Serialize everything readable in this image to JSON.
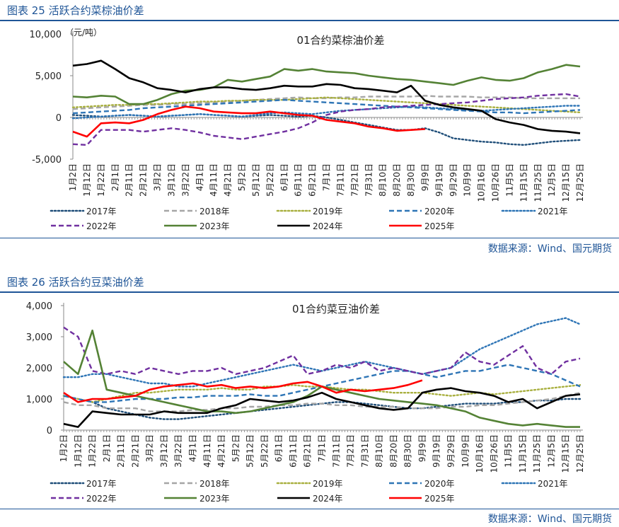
{
  "figures": [
    {
      "caption": "图表 25 活跃合约菜棕油价差",
      "source": "数据来源：Wind、国元期货",
      "chart_data": {
        "type": "line",
        "title": "01合约菜棕油价差",
        "ylabel": "（元/吨）",
        "ylim": [
          -5000,
          10000
        ],
        "yticks": [
          -5000,
          0,
          5000,
          10000
        ],
        "ytick_labels": [
          "-5,000",
          "0",
          "5,000",
          "10,000"
        ],
        "x_labels": [
          "1月2日",
          "1月12日",
          "1月22日",
          "2月1日",
          "2月11日",
          "2月21日",
          "3月2日",
          "3月12日",
          "3月22日",
          "4月1日",
          "4月11日",
          "4月21日",
          "5月2日",
          "5月12日",
          "5月22日",
          "6月1日",
          "6月11日",
          "6月21日",
          "7月1日",
          "7月11日",
          "7月21日",
          "7月31日",
          "8月10日",
          "8月20日",
          "8月30日",
          "9月9日",
          "9月19日",
          "9月29日",
          "10月9日",
          "10月16日",
          "10月26日",
          "11月5日",
          "11月15日",
          "11月25日",
          "12月5日",
          "12月15日",
          "12月25日"
        ],
        "series": [
          {
            "name": "2017年",
            "color": "#1f4e79",
            "dash": "dot",
            "values": [
              300,
              200,
              100,
              200,
              300,
              200,
              100,
              200,
              300,
              400,
              300,
              200,
              100,
              200,
              300,
              200,
              100,
              200,
              0,
              -300,
              -600,
              -900,
              -1200,
              -1500,
              -1500,
              -1300,
              -1800,
              -2500,
              -2700,
              -2900,
              -3000,
              -3200,
              -3300,
              -3100,
              -2900,
              -2800,
              -2700
            ]
          },
          {
            "name": "2018年",
            "color": "#a6a6a6",
            "dash": "dash",
            "values": [
              1000,
              1100,
              1200,
              1300,
              1400,
              1500,
              1500,
              1600,
              1600,
              1700,
              1800,
              1900,
              2000,
              2100,
              2200,
              2300,
              2400,
              2300,
              2300,
              2400,
              2400,
              2500,
              2500,
              2500,
              2500,
              2600,
              2500,
              2500,
              2500,
              2400,
              2400,
              2400,
              2300,
              2300,
              2300,
              2300,
              2300
            ]
          },
          {
            "name": "2019年",
            "color": "#a9b040",
            "dash": "dot",
            "values": [
              1200,
              1300,
              1400,
              1500,
              1500,
              1600,
              1600,
              1700,
              1800,
              1900,
              1900,
              2000,
              2000,
              2100,
              2100,
              2100,
              2200,
              2300,
              2400,
              2300,
              2200,
              2100,
              2000,
              1900,
              1800,
              1700,
              1600,
              1500,
              1400,
              1300,
              1200,
              1100,
              1000,
              900,
              800,
              700,
              600
            ]
          },
          {
            "name": "2020年",
            "color": "#2e75b6",
            "dash": "dash",
            "values": [
              500,
              600,
              700,
              800,
              900,
              1100,
              1200,
              1300,
              1400,
              1500,
              1600,
              1700,
              1800,
              1900,
              2000,
              2100,
              2000,
              1900,
              1800,
              1700,
              1600,
              1500,
              1400,
              1300,
              1200,
              1100,
              1000,
              900,
              800,
              700,
              600,
              600,
              500,
              600,
              700,
              800,
              900
            ]
          },
          {
            "name": "2021年",
            "color": "#2e75b6",
            "dash": "dot",
            "values": [
              -100,
              0,
              100,
              200,
              300,
              200,
              100,
              200,
              300,
              400,
              300,
              200,
              100,
              300,
              500,
              600,
              500,
              400,
              600,
              800,
              900,
              1000,
              1100,
              1200,
              1300,
              1200,
              1100,
              1000,
              900,
              800,
              900,
              1000,
              1100,
              1200,
              1300,
              1400,
              1400
            ]
          },
          {
            "name": "2022年",
            "color": "#7030a0",
            "dash": "dash",
            "values": [
              -3200,
              -3300,
              -1500,
              -1500,
              -1500,
              -1700,
              -1500,
              -1300,
              -1500,
              -1800,
              -2200,
              -2400,
              -2600,
              -2300,
              -2000,
              -1700,
              -1300,
              -600,
              300,
              700,
              900,
              1000,
              1200,
              1300,
              1400,
              1500,
              1600,
              1700,
              1800,
              2000,
              2200,
              2300,
              2400,
              2600,
              2700,
              2800,
              2500
            ]
          },
          {
            "name": "2023年",
            "color": "#548235",
            "dash": "solid",
            "values": [
              2500,
              2400,
              2600,
              2500,
              1600,
              1600,
              2100,
              2800,
              3200,
              3300,
              3600,
              4500,
              4300,
              4600,
              4900,
              5800,
              5600,
              5800,
              5500,
              5400,
              5300,
              5000,
              4800,
              4600,
              4500,
              4300,
              4100,
              3900,
              4400,
              4800,
              4500,
              4400,
              4700,
              5400,
              5800,
              6300,
              6100
            ]
          },
          {
            "name": "2024年",
            "color": "#000000",
            "dash": "solid",
            "values": [
              6200,
              6400,
              6800,
              5800,
              4700,
              4200,
              3500,
              3300,
              3000,
              3400,
              3600,
              3600,
              3400,
              3300,
              3500,
              3800,
              3700,
              3700,
              4000,
              3900,
              3500,
              3400,
              3200,
              3000,
              3800,
              2000,
              1500,
              1200,
              1000,
              800,
              -200,
              -600,
              -900,
              -1400,
              -1600,
              -1700,
              -1900
            ]
          },
          {
            "name": "2025年",
            "color": "#ff0000",
            "dash": "solid",
            "values": [
              -1700,
              -2300,
              -700,
              -600,
              -700,
              -300,
              400,
              900,
              1300,
              1100,
              700,
              600,
              500,
              500,
              700,
              500,
              300,
              200,
              -300,
              -500,
              -700,
              -1100,
              -1300,
              -1600,
              -1500,
              -1400
            ]
          }
        ]
      }
    },
    {
      "caption": "图表 26 活跃合约豆菜油价差",
      "source": "数据来源：Wind、国元期货",
      "chart_data": {
        "type": "line",
        "title": "01合约菜豆油价差",
        "ylabel": "",
        "ylim": [
          0,
          4000
        ],
        "yticks": [
          0,
          1000,
          2000,
          3000,
          4000
        ],
        "ytick_labels": [
          "0",
          "1,000",
          "2,000",
          "3,000",
          "4,000"
        ],
        "x_labels": [
          "1月2日",
          "1月12日",
          "1月22日",
          "2月1日",
          "2月11日",
          "2月21日",
          "3月2日",
          "3月12日",
          "3月22日",
          "4月1日",
          "4月11日",
          "4月21日",
          "5月2日",
          "5月12日",
          "5月22日",
          "6月1日",
          "6月11日",
          "6月21日",
          "7月1日",
          "7月11日",
          "7月21日",
          "7月31日",
          "8月10日",
          "8月20日",
          "8月30日",
          "9月9日",
          "9月19日",
          "9月29日",
          "10月9日",
          "10月16日",
          "10月26日",
          "11月5日",
          "11月15日",
          "11月25日",
          "12月5日",
          "12月15日",
          "12月25日"
        ],
        "series": [
          {
            "name": "2017年",
            "color": "#1f4e79",
            "dash": "dot",
            "values": [
              1100,
              1000,
              900,
              700,
              600,
              500,
              400,
              350,
              350,
              400,
              450,
              500,
              550,
              600,
              650,
              700,
              750,
              800,
              850,
              900,
              900,
              850,
              800,
              750,
              700,
              700,
              750,
              800,
              850,
              850,
              850,
              900,
              900,
              950,
              950,
              1000,
              1000
            ]
          },
          {
            "name": "2018年",
            "color": "#a6a6a6",
            "dash": "dash",
            "values": [
              900,
              800,
              800,
              700,
              700,
              700,
              600,
              600,
              600,
              650,
              650,
              700,
              700,
              750,
              750,
              800,
              800,
              850,
              850,
              800,
              800,
              750,
              750,
              750,
              700,
              700,
              700,
              750,
              750,
              800,
              800,
              850,
              900,
              950,
              1000,
              1100,
              1200
            ]
          },
          {
            "name": "2019年",
            "color": "#a9b040",
            "dash": "dot",
            "values": [
              1100,
              1000,
              900,
              1000,
              1100,
              1200,
              1200,
              1250,
              1300,
              1300,
              1300,
              1350,
              1300,
              1300,
              1400,
              1400,
              1450,
              1400,
              1400,
              1350,
              1300,
              1300,
              1250,
              1200,
              1200,
              1200,
              1150,
              1100,
              1150,
              1200,
              1150,
              1200,
              1250,
              1300,
              1350,
              1400,
              1450
            ]
          },
          {
            "name": "2020年",
            "color": "#2e75b6",
            "dash": "dash",
            "values": [
              1100,
              1000,
              900,
              900,
              950,
              1000,
              1000,
              1000,
              1050,
              1050,
              1100,
              1100,
              1100,
              1150,
              1100,
              1100,
              1200,
              1300,
              1400,
              1500,
              1600,
              1700,
              1800,
              1900,
              1900,
              1800,
              1700,
              1800,
              1900,
              1900,
              2000,
              2100,
              2000,
              1900,
              1800,
              1600,
              1400
            ]
          },
          {
            "name": "2021年",
            "color": "#2e75b6",
            "dash": "dot",
            "values": [
              1700,
              1700,
              1800,
              1800,
              1700,
              1600,
              1500,
              1500,
              1400,
              1400,
              1500,
              1600,
              1700,
              1800,
              1900,
              2000,
              2100,
              2000,
              1900,
              2000,
              2100,
              2200,
              2100,
              2000,
              1900,
              1800,
              1900,
              2000,
              2300,
              2600,
              2800,
              3000,
              3200,
              3400,
              3500,
              3600,
              3400
            ]
          },
          {
            "name": "2022年",
            "color": "#7030a0",
            "dash": "dash",
            "values": [
              3300,
              3000,
              1900,
              1800,
              1900,
              1800,
              2000,
              1900,
              1800,
              1900,
              1900,
              2000,
              1800,
              1900,
              2000,
              2200,
              2400,
              1800,
              1900,
              2100,
              2000,
              2200,
              1900,
              2000,
              1900,
              1800,
              1900,
              2000,
              2500,
              2200,
              2100,
              2400,
              2700,
              2000,
              1800,
              2200,
              2300
            ]
          },
          {
            "name": "2023年",
            "color": "#548235",
            "dash": "solid",
            "values": [
              2200,
              1800,
              3200,
              1300,
              1200,
              1100,
              1000,
              900,
              800,
              700,
              600,
              600,
              550,
              600,
              700,
              800,
              900,
              1100,
              1400,
              1300,
              1200,
              1100,
              1000,
              950,
              900,
              850,
              800,
              700,
              600,
              400,
              300,
              200,
              150,
              200,
              150,
              100,
              100
            ]
          },
          {
            "name": "2024年",
            "color": "#000000",
            "dash": "solid",
            "values": [
              200,
              100,
              600,
              550,
              500,
              500,
              500,
              600,
              550,
              550,
              550,
              700,
              800,
              1000,
              950,
              900,
              950,
              1050,
              1200,
              1000,
              900,
              800,
              700,
              650,
              700,
              1200,
              1300,
              1350,
              1250,
              1200,
              1100,
              900,
              1000,
              700,
              900,
              1100,
              1150
            ]
          },
          {
            "name": "2025年",
            "color": "#ff0000",
            "dash": "solid",
            "values": [
              1200,
              900,
              1000,
              1000,
              1050,
              1100,
              1300,
              1400,
              1450,
              1500,
              1400,
              1450,
              1350,
              1400,
              1350,
              1400,
              1500,
              1550,
              1400,
              1200,
              1300,
              1250,
              1300,
              1350,
              1450,
              1600
            ]
          }
        ]
      }
    }
  ]
}
